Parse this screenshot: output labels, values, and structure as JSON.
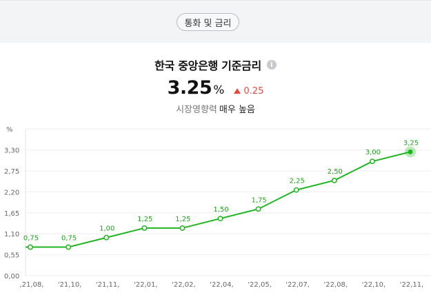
{
  "header": {
    "category_label": "통화 및 금리"
  },
  "summary": {
    "title": "한국 중앙은행 기준금리",
    "info_icon": "info-icon",
    "value": "3.25",
    "unit": "%",
    "change": "0.25",
    "change_direction": "up",
    "impact_label": "시장영향력",
    "impact_value": "매우 높음"
  },
  "colors": {
    "line": "#1db61d",
    "up": "#e5483c",
    "grid": "#eeeeee"
  },
  "chart_data": {
    "type": "line",
    "unit_label": "%",
    "y_ticks": [
      "0,00",
      "0,55",
      "1,10",
      "1,65",
      "2,20",
      "2,75",
      "3,30"
    ],
    "y_tick_values": [
      0,
      0.55,
      1.1,
      1.65,
      2.2,
      2.75,
      3.3
    ],
    "ylim": [
      0,
      3.85
    ],
    "x_labels": [
      "'21.08.",
      "'21.10.",
      "'21.11.",
      "'22.01.",
      "'22.02.",
      "'22.04.",
      "'22.05.",
      "'22.07.",
      "'22.08.",
      "'22.10.",
      "'22.11."
    ],
    "x_tick_labels": [
      ",21,08,",
      "'21,10,",
      "'21,11,",
      "'22,01,",
      "'22,02,",
      "'22,04,",
      "'22,05,",
      "'22,07,",
      "'22,08,",
      "'22,10,",
      "'22,11,"
    ],
    "series": [
      {
        "values": [
          0.75,
          0.75,
          1.0,
          1.25,
          1.25,
          1.5,
          1.75,
          2.25,
          2.5,
          3.0,
          3.25
        ],
        "value_labels": [
          "0,75",
          "0,75",
          "1,00",
          "1,25",
          "1,25",
          "1,50",
          "1,75",
          "2,25",
          "2,50",
          "3,00",
          "3,25"
        ]
      }
    ],
    "grid": true,
    "last_point_highlighted": true
  }
}
